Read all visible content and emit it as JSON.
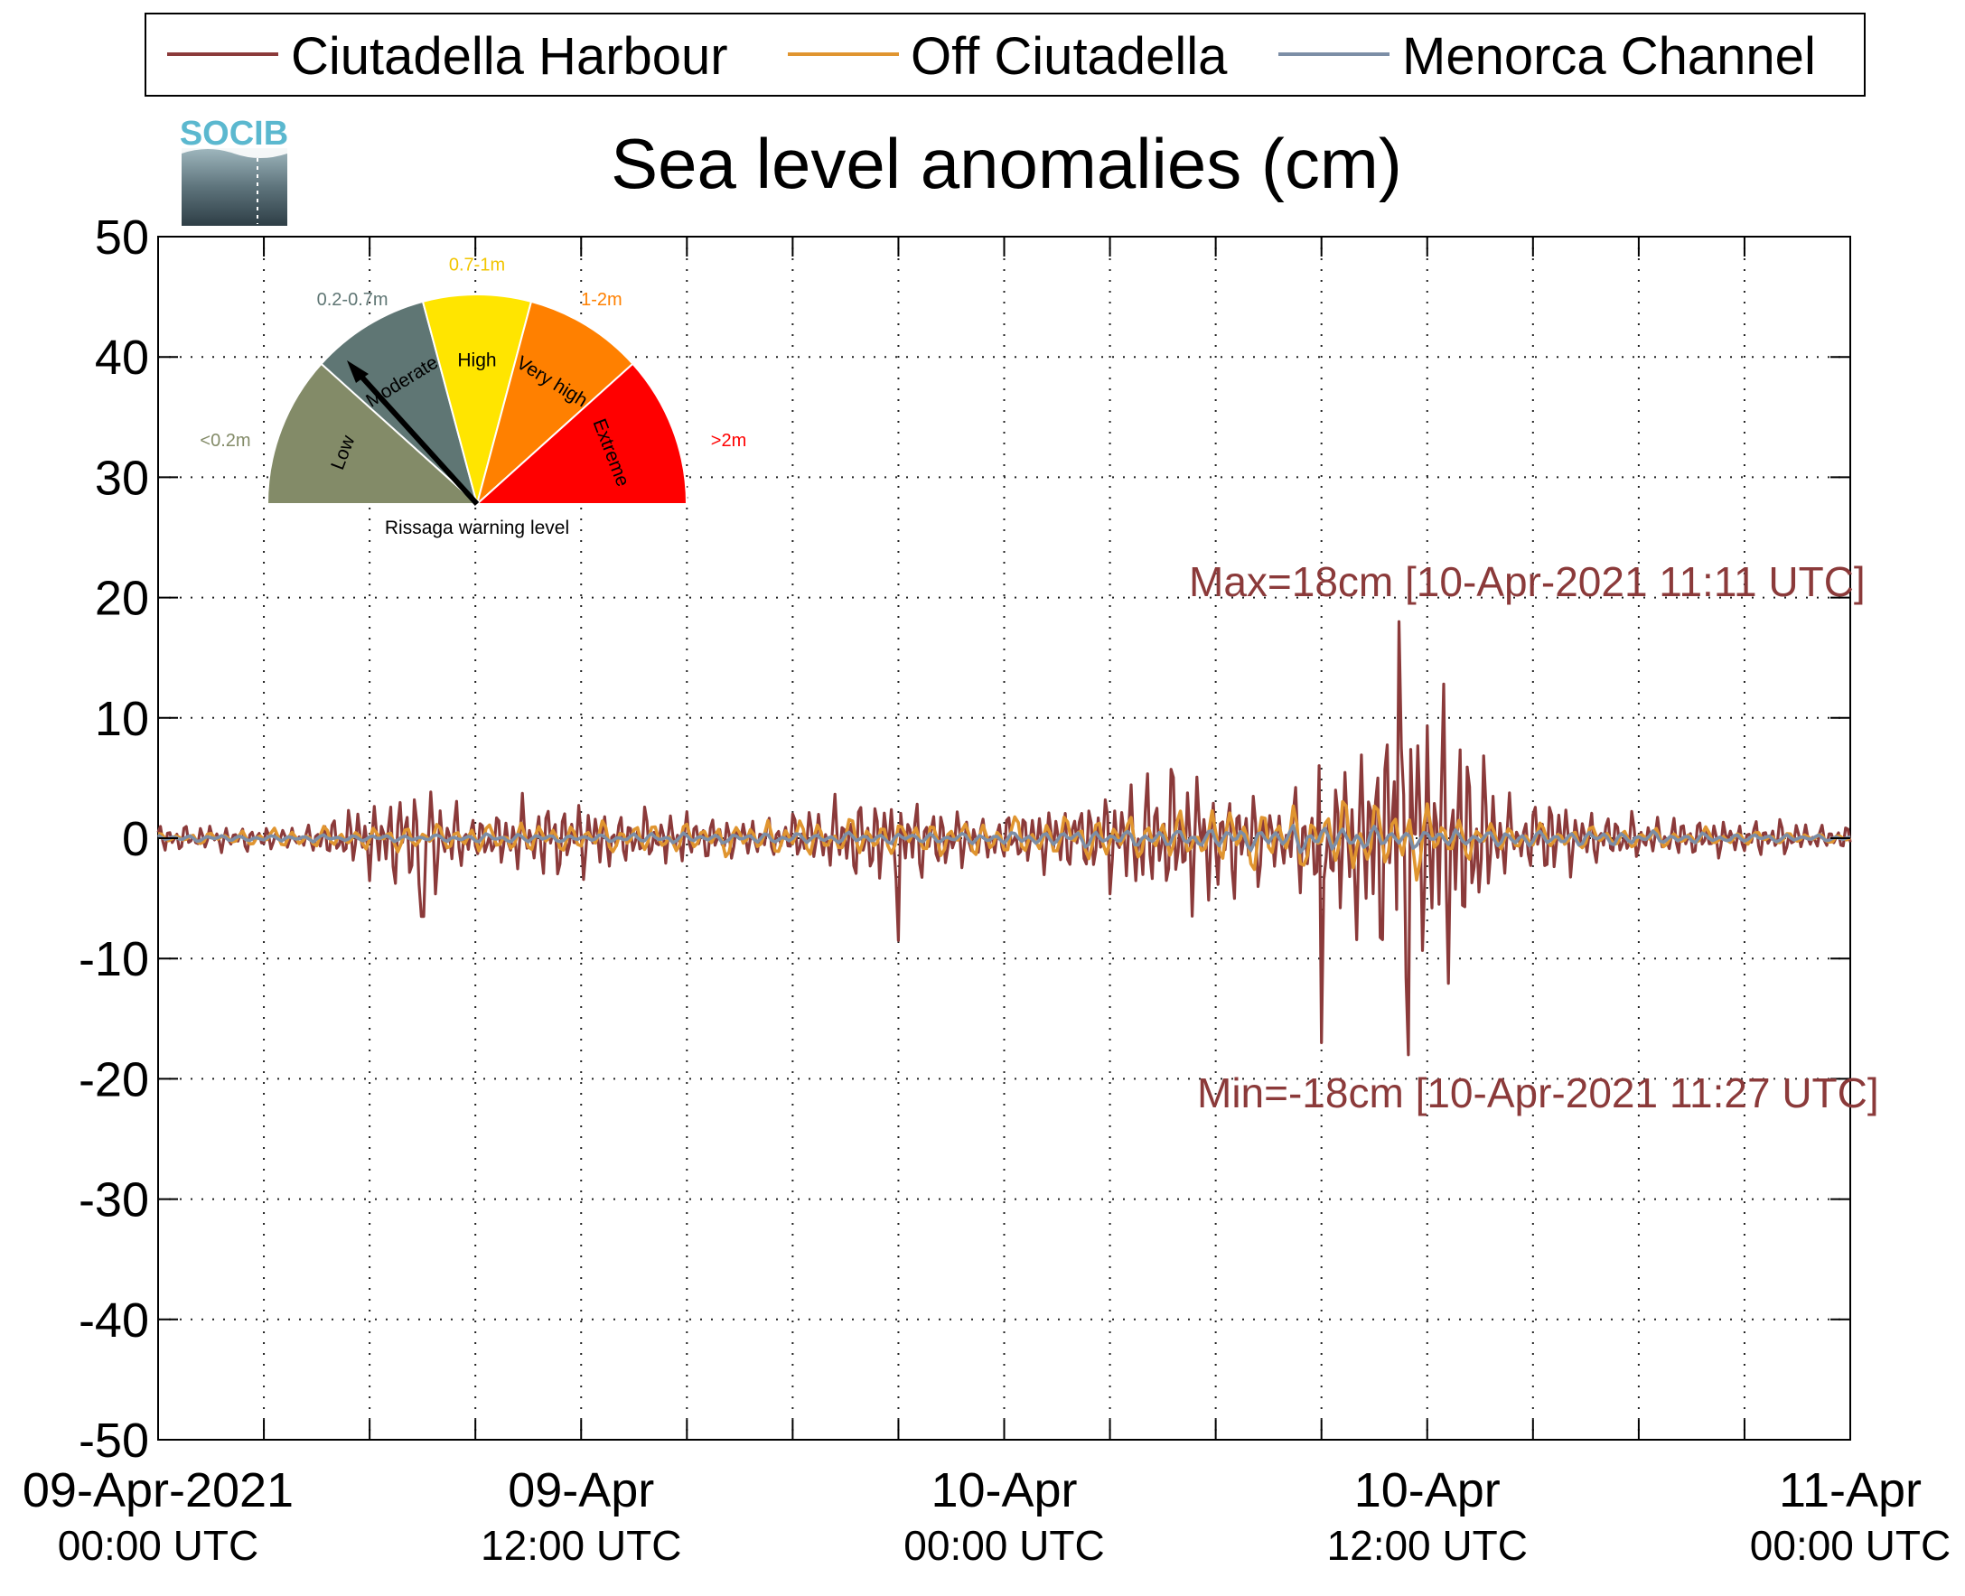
{
  "legend": {
    "items": [
      {
        "label": "Ciutadella Harbour",
        "color": "#8B3A3A"
      },
      {
        "label": "Off Ciutadella",
        "color": "#E09530"
      },
      {
        "label": "Menorca Channel",
        "color": "#7C8EA6"
      }
    ]
  },
  "logo": {
    "text": "SOCIB"
  },
  "gauge": {
    "caption": "Rissaga warning level",
    "needle_level": "Moderate",
    "segments": [
      {
        "name": "Low",
        "range": "<0.2m",
        "color": "#838B68",
        "label_color": "#838B68"
      },
      {
        "name": "Moderate",
        "range": "0.2-0.7m",
        "color": "#5F7674",
        "label_color": "#5F7674"
      },
      {
        "name": "High",
        "range": "0.7-1m",
        "color": "#FFE500",
        "label_color": "#F2C500"
      },
      {
        "name": "Very high",
        "range": "1-2m",
        "color": "#FF8000",
        "label_color": "#FF8000"
      },
      {
        "name": "Extreme",
        "range": ">2m",
        "color": "#FF0000",
        "label_color": "#FF0000"
      }
    ]
  },
  "annotations": {
    "max": "Max=18cm [10-Apr-2021 11:11 UTC]",
    "min": "Min=-18cm [10-Apr-2021 11:27 UTC]",
    "color": "#8B3A3A"
  },
  "chart_data": {
    "type": "line",
    "title": "Sea level anomalies (cm)",
    "xlabel": "",
    "ylabel": "",
    "ylim": [
      -50,
      50
    ],
    "yticks": [
      50,
      40,
      30,
      20,
      10,
      0,
      -10,
      -20,
      -30,
      -40,
      -50
    ],
    "xlim": [
      "2021-04-09 00:00",
      "2021-04-11 00:00"
    ],
    "xticks": [
      {
        "time": "2021-04-09 00:00",
        "line1": "09-Apr-2021",
        "line2": "00:00 UTC"
      },
      {
        "time": "2021-04-09 12:00",
        "line1": "09-Apr",
        "line2": "12:00 UTC"
      },
      {
        "time": "2021-04-10 00:00",
        "line1": "10-Apr",
        "line2": "00:00 UTC"
      },
      {
        "time": "2021-04-10 12:00",
        "line1": "10-Apr",
        "line2": "12:00 UTC"
      },
      {
        "time": "2021-04-11 00:00",
        "line1": "11-Apr",
        "line2": "00:00 UTC"
      }
    ],
    "grid": true,
    "legend_position": "top",
    "series": [
      {
        "name": "Ciutadella Harbour",
        "color": "#8B3A3A",
        "envelope": [
          {
            "time": "2021-04-09 00:00",
            "amp": 1.5
          },
          {
            "time": "2021-04-09 04:00",
            "amp": 1.2
          },
          {
            "time": "2021-04-09 07:30",
            "amp": 6
          },
          {
            "time": "2021-04-09 09:00",
            "amp": 2.5
          },
          {
            "time": "2021-04-09 11:00",
            "amp": 4.5
          },
          {
            "time": "2021-04-09 13:00",
            "amp": 3
          },
          {
            "time": "2021-04-09 17:00",
            "amp": 2
          },
          {
            "time": "2021-04-09 20:30",
            "amp": 5
          },
          {
            "time": "2021-04-09 23:30",
            "amp": 2.5
          },
          {
            "time": "2021-04-10 03:30",
            "amp": 6
          },
          {
            "time": "2021-04-10 05:00",
            "amp": 7.5
          },
          {
            "time": "2021-04-10 08:00",
            "amp": 4
          },
          {
            "time": "2021-04-10 09:00",
            "amp": 9
          },
          {
            "time": "2021-04-10 10:30",
            "amp": 14
          },
          {
            "time": "2021-04-10 11:15",
            "amp": 18
          },
          {
            "time": "2021-04-10 13:00",
            "amp": 13
          },
          {
            "time": "2021-04-10 13:45",
            "amp": 8
          },
          {
            "time": "2021-04-10 14:30",
            "amp": 3
          },
          {
            "time": "2021-04-10 15:15",
            "amp": 4.5
          },
          {
            "time": "2021-04-10 17:00",
            "amp": 2.5
          },
          {
            "time": "2021-04-10 20:30",
            "amp": 2
          },
          {
            "time": "2021-04-11 00:00",
            "amp": 1.5
          }
        ],
        "extremes": [
          {
            "time": "2021-04-10 11:11",
            "value": 18
          },
          {
            "time": "2021-04-10 11:27",
            "value": -18
          },
          {
            "time": "2021-04-10 09:00",
            "value": -17
          },
          {
            "time": "2021-04-09 07:30",
            "value": 6
          },
          {
            "time": "2021-04-09 07:30",
            "value": -6.5
          },
          {
            "time": "2021-04-09 21:00",
            "value": 5.5
          },
          {
            "time": "2021-04-09 21:00",
            "value": -8.5
          }
        ]
      },
      {
        "name": "Off Ciutadella",
        "color": "#E09530",
        "envelope": [
          {
            "time": "2021-04-09 00:00",
            "amp": 0.5
          },
          {
            "time": "2021-04-09 07:30",
            "amp": 1.5
          },
          {
            "time": "2021-04-09 21:00",
            "amp": 2
          },
          {
            "time": "2021-04-10 05:00",
            "amp": 2.5
          },
          {
            "time": "2021-04-10 09:00",
            "amp": 4
          },
          {
            "time": "2021-04-10 11:00",
            "amp": 4.5
          },
          {
            "time": "2021-04-10 14:00",
            "amp": 1.5
          },
          {
            "time": "2021-04-11 00:00",
            "amp": 0.5
          }
        ]
      },
      {
        "name": "Menorca Channel",
        "color": "#7C8EA6",
        "envelope": [
          {
            "time": "2021-04-09 00:00",
            "amp": 0.3
          },
          {
            "time": "2021-04-10 00:00",
            "amp": 0.6
          },
          {
            "time": "2021-04-10 10:00",
            "amp": 1.5
          },
          {
            "time": "2021-04-10 12:00",
            "amp": 1
          },
          {
            "time": "2021-04-11 00:00",
            "amp": 0.3
          }
        ]
      }
    ]
  }
}
